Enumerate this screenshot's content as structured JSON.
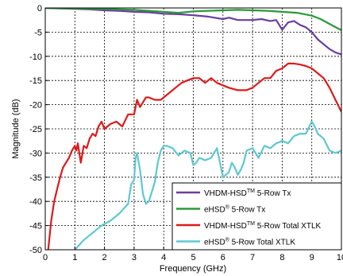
{
  "chart_data": {
    "type": "line",
    "title": "",
    "xlabel": "Frequency (GHz)",
    "ylabel": "Magnitude (dB)",
    "xlim": [
      0,
      10
    ],
    "ylim": [
      -50,
      0
    ],
    "grid": true,
    "legend_position": "bottom-right",
    "x_ticks": [
      0,
      1,
      2,
      3,
      4,
      5,
      6,
      7,
      8,
      9,
      10
    ],
    "x_tick_labels": [
      "0",
      "1",
      "2",
      "3",
      "4",
      "5",
      "6",
      "7",
      "8",
      "9",
      "10"
    ],
    "y_ticks": [
      0,
      -5,
      -10,
      -15,
      -20,
      -25,
      -30,
      -35,
      -40,
      -45,
      -50
    ],
    "y_tick_labels": [
      "0",
      "-5",
      "-10",
      "-15",
      "-20",
      "-25",
      "-30",
      "-35",
      "-40",
      "-45",
      "-50"
    ],
    "series": [
      {
        "name": "VHDM-HSD 5-Row Tx",
        "name_parts": [
          "VHDM-HSD",
          "TM",
          " 5-Row Tx"
        ],
        "color": "#6a3fa0",
        "x": [
          0,
          0.5,
          1,
          1.5,
          2,
          2.5,
          3,
          3.5,
          4,
          4.5,
          5,
          5.5,
          6,
          6.2,
          6.5,
          7,
          7.3,
          7.6,
          7.8,
          8,
          8.2,
          8.4,
          8.6,
          8.8,
          9,
          9.2,
          9.4,
          9.6,
          9.8,
          10
        ],
        "y": [
          0,
          -0.1,
          -0.2,
          -0.3,
          -0.5,
          -0.6,
          -0.8,
          -0.9,
          -1.2,
          -1.3,
          -1.5,
          -1.8,
          -2.3,
          -2.0,
          -2.5,
          -2.5,
          -2.3,
          -2.7,
          -2.5,
          -4.5,
          -3.0,
          -2.7,
          -3.5,
          -4.0,
          -5.0,
          -6.5,
          -7.5,
          -8.5,
          -9.2,
          -9.6
        ]
      },
      {
        "name": "eHSD 5-Row Tx",
        "name_parts": [
          "eHSD",
          "®",
          " 5-Row Tx"
        ],
        "color": "#2a9a3a",
        "x": [
          0,
          1,
          2,
          3,
          4,
          4.5,
          5,
          5.5,
          6,
          6.5,
          7,
          7.5,
          8,
          8.5,
          9,
          9.3,
          9.6,
          10
        ],
        "y": [
          0,
          -0.1,
          -0.2,
          -0.4,
          -0.8,
          -1.0,
          -0.7,
          -0.6,
          -0.5,
          -0.4,
          -0.5,
          -0.6,
          -0.8,
          -1.0,
          -1.6,
          -2.3,
          -3.3,
          -4.6
        ]
      },
      {
        "name": "VHDM-HSD 5-Row Total XTLK",
        "name_parts": [
          "VHDM-HSD",
          "TM",
          " 5-Row Total XTLK"
        ],
        "color": "#dd1a1a",
        "x": [
          0.1,
          0.2,
          0.3,
          0.4,
          0.5,
          0.6,
          0.7,
          0.8,
          0.9,
          1.0,
          1.05,
          1.1,
          1.2,
          1.3,
          1.4,
          1.5,
          1.6,
          1.7,
          1.8,
          1.9,
          2.0,
          2.2,
          2.4,
          2.6,
          2.8,
          3.0,
          3.1,
          3.2,
          3.4,
          3.5,
          3.7,
          3.9,
          4.0,
          4.2,
          4.4,
          4.6,
          4.8,
          5.0,
          5.2,
          5.4,
          5.6,
          5.8,
          6.0,
          6.2,
          6.5,
          6.8,
          7.0,
          7.2,
          7.4,
          7.6,
          7.8,
          8.0,
          8.2,
          8.4,
          8.6,
          8.8,
          9.0,
          9.2,
          9.4,
          9.6,
          9.8,
          10.0
        ],
        "y": [
          -50,
          -44,
          -40,
          -37.5,
          -35,
          -33,
          -32,
          -31,
          -29.5,
          -28.5,
          -29.5,
          -28.0,
          -32.0,
          -28.5,
          -29.0,
          -27.0,
          -26.0,
          -26.5,
          -24.5,
          -23.5,
          -25.0,
          -24.0,
          -23.5,
          -24.5,
          -22.0,
          -22.0,
          -19.0,
          -20.5,
          -18.5,
          -18.5,
          -19.0,
          -19.0,
          -18.5,
          -17.5,
          -16.5,
          -15.5,
          -15.0,
          -14.5,
          -14.5,
          -15.5,
          -14.5,
          -15.5,
          -16.0,
          -16.5,
          -17.0,
          -17.0,
          -16.5,
          -15.5,
          -14.5,
          -14.5,
          -13.0,
          -12.5,
          -11.5,
          -11.5,
          -11.7,
          -12.0,
          -12.5,
          -13.5,
          -14.5,
          -16.5,
          -19.0,
          -21.5
        ]
      },
      {
        "name": "eHSD 5-Row Total XTLK",
        "name_parts": [
          "eHSD",
          "®",
          " 5-Row Total XTLK"
        ],
        "color": "#5ec8d0",
        "x": [
          1.0,
          1.3,
          1.6,
          1.9,
          2.2,
          2.5,
          2.8,
          2.9,
          3.0,
          3.05,
          3.1,
          3.2,
          3.3,
          3.4,
          3.5,
          3.6,
          3.7,
          3.8,
          3.9,
          4.0,
          4.1,
          4.3,
          4.5,
          4.7,
          4.9,
          5.0,
          5.1,
          5.2,
          5.4,
          5.6,
          5.7,
          5.8,
          5.9,
          6.0,
          6.1,
          6.2,
          6.3,
          6.4,
          6.5,
          6.6,
          6.7,
          6.8,
          7.0,
          7.2,
          7.4,
          7.6,
          7.8,
          8.0,
          8.2,
          8.4,
          8.6,
          8.8,
          9.0,
          9.1,
          9.2,
          9.4,
          9.6,
          9.8,
          10.0
        ],
        "y": [
          -50,
          -48,
          -46.5,
          -45,
          -44,
          -42.5,
          -40.5,
          -36.5,
          -35.5,
          -31.0,
          -30.0,
          -33.5,
          -38.5,
          -40.5,
          -40.0,
          -38.0,
          -36.0,
          -32.0,
          -29.5,
          -28.5,
          -28.5,
          -29.0,
          -30.5,
          -29.5,
          -30.0,
          -32.5,
          -32.0,
          -31.0,
          -31.5,
          -31.0,
          -30.0,
          -29.0,
          -32.0,
          -35.0,
          -34.5,
          -34.0,
          -32.0,
          -33.0,
          -34.5,
          -33.5,
          -32.0,
          -29.5,
          -29.0,
          -31.0,
          -28.5,
          -29.0,
          -28.0,
          -27.5,
          -28.0,
          -26.5,
          -26.0,
          -26.0,
          -23.5,
          -24.5,
          -26.0,
          -27.0,
          -29.5,
          -30.0,
          -29.5
        ]
      }
    ]
  }
}
